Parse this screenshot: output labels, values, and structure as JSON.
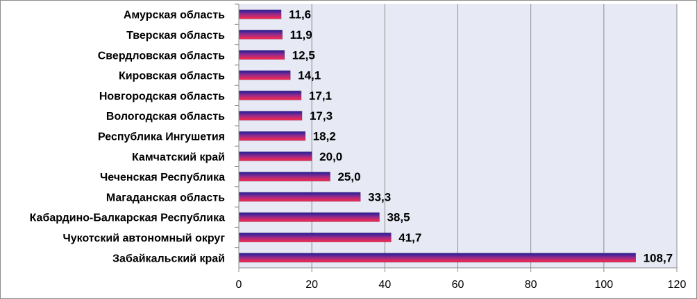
{
  "chart_data": {
    "type": "bar",
    "orientation": "horizontal",
    "categories": [
      "Амурская область",
      "Тверская область",
      "Свердловская область",
      "Кировская область",
      "Новгородская  область",
      "Вологодская область",
      "Республика Ингушетия",
      "Камчатский край",
      "Чеченская Республика",
      "Магаданская  область",
      "Кабардино-Балкарская  Республика",
      "Чукотский автономный  округ",
      "Забайкальский край"
    ],
    "values": [
      11.6,
      11.9,
      12.5,
      14.1,
      17.1,
      17.3,
      18.2,
      20.0,
      25.0,
      33.3,
      38.5,
      41.7,
      108.7
    ],
    "value_labels": [
      "11,6",
      "11,9",
      "12,5",
      "14,1",
      "17,1",
      "17,3",
      "18,2",
      "20,0",
      "25,0",
      "33,3",
      "38,5",
      "41,7",
      "108,7"
    ],
    "xlim": [
      0,
      120
    ],
    "xticks": [
      0,
      20,
      40,
      60,
      80,
      100,
      120
    ],
    "title": "",
    "xlabel": "",
    "ylabel": "",
    "grid": "vertical",
    "legend": "none",
    "colors": {
      "plot_background": "#e7eaf5",
      "gridline": "#8c8c8c",
      "bar_top": "#1b1f9a",
      "bar_bottom": "#ff2a45",
      "frame": "#8c8c8c"
    }
  }
}
